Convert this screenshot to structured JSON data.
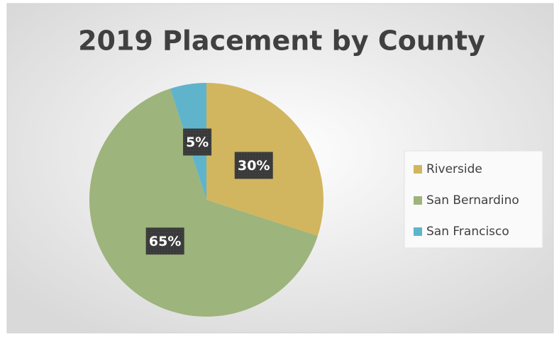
{
  "chart_data": {
    "type": "pie",
    "title": "2019 Placement by County",
    "categories": [
      "Riverside",
      "San Bernardino",
      "San Francisco"
    ],
    "values": [
      30,
      65,
      5
    ],
    "value_labels": [
      "30%",
      "65%",
      "5%"
    ],
    "colors": [
      "#d1b65f",
      "#9db47c",
      "#5fb4cb"
    ],
    "legend": "right"
  }
}
